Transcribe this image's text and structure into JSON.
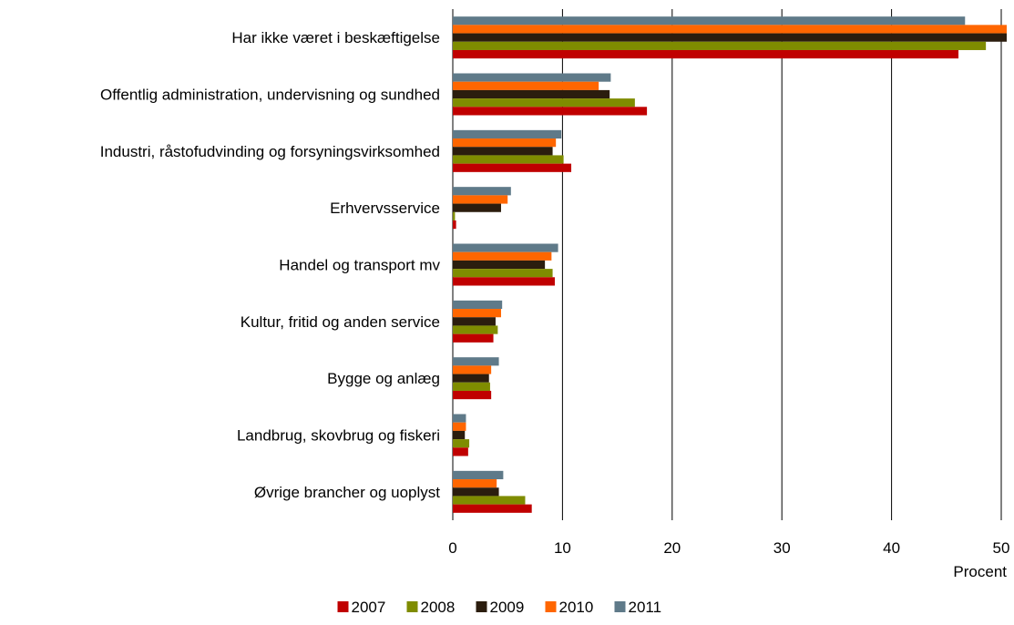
{
  "chart_data": {
    "type": "bar",
    "orientation": "horizontal",
    "categories": [
      "Har ikke været i beskæftigelse",
      "Offentlig administration, undervisning og sundhed",
      "Industri, råstofudvinding og forsyningsvirksomhed",
      "Erhvervsservice",
      "Handel og transport mv",
      "Kultur, fritid og anden service",
      "Bygge og anlæg",
      "Landbrug, skovbrug og fiskeri",
      "Øvrige brancher og uoplyst"
    ],
    "series": [
      {
        "name": "2007",
        "color": "#c00000",
        "values": [
          46.1,
          17.7,
          10.8,
          0.3,
          9.3,
          3.7,
          3.5,
          1.4,
          7.2
        ]
      },
      {
        "name": "2008",
        "color": "#7f8c00",
        "values": [
          48.6,
          16.6,
          10.1,
          0.2,
          9.1,
          4.1,
          3.4,
          1.5,
          6.6
        ]
      },
      {
        "name": "2009",
        "color": "#2b1d0e",
        "values": [
          50.5,
          14.3,
          9.1,
          4.4,
          8.4,
          3.9,
          3.3,
          1.1,
          4.2
        ]
      },
      {
        "name": "2010",
        "color": "#ff6600",
        "values": [
          50.5,
          13.3,
          9.4,
          5.0,
          9.0,
          4.4,
          3.5,
          1.2,
          4.0
        ]
      },
      {
        "name": "2011",
        "color": "#5f7a89",
        "values": [
          46.7,
          14.4,
          9.9,
          5.3,
          9.6,
          4.5,
          4.2,
          1.2,
          4.6
        ]
      }
    ],
    "xlim": [
      0,
      50
    ],
    "xticks": [
      "0",
      "10",
      "20",
      "30",
      "40",
      "50"
    ],
    "xlabel": "Procent",
    "grid": "vertical",
    "legend": "bottom"
  }
}
